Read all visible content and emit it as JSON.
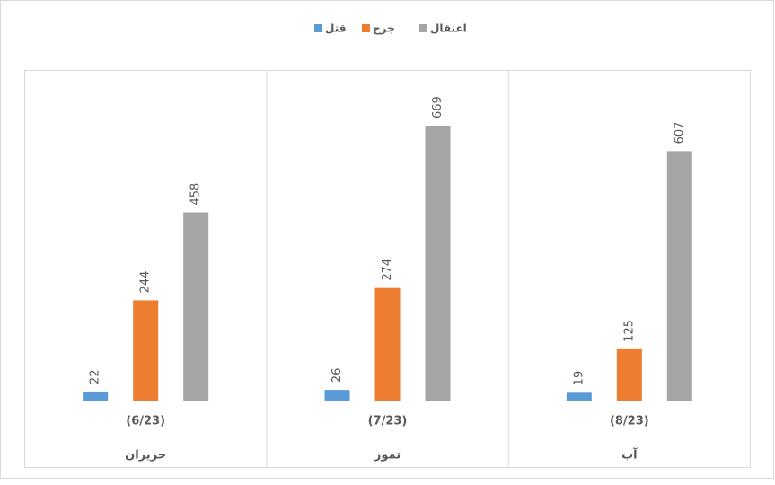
{
  "chart_data": {
    "type": "bar",
    "categories": [
      "(6/23)",
      "(7/23)",
      "(8/23)"
    ],
    "category_groups": [
      "حزيران",
      "تموز",
      "آب"
    ],
    "series": [
      {
        "name": "قتل",
        "color": "#5b9bd5",
        "values": [
          22,
          26,
          19
        ]
      },
      {
        "name": "جرح",
        "color": "#ed7d31",
        "values": [
          244,
          274,
          125
        ]
      },
      {
        "name": "اعتقال",
        "color": "#a5a5a5",
        "values": [
          458,
          669,
          607
        ]
      }
    ],
    "legend": "top"
  }
}
